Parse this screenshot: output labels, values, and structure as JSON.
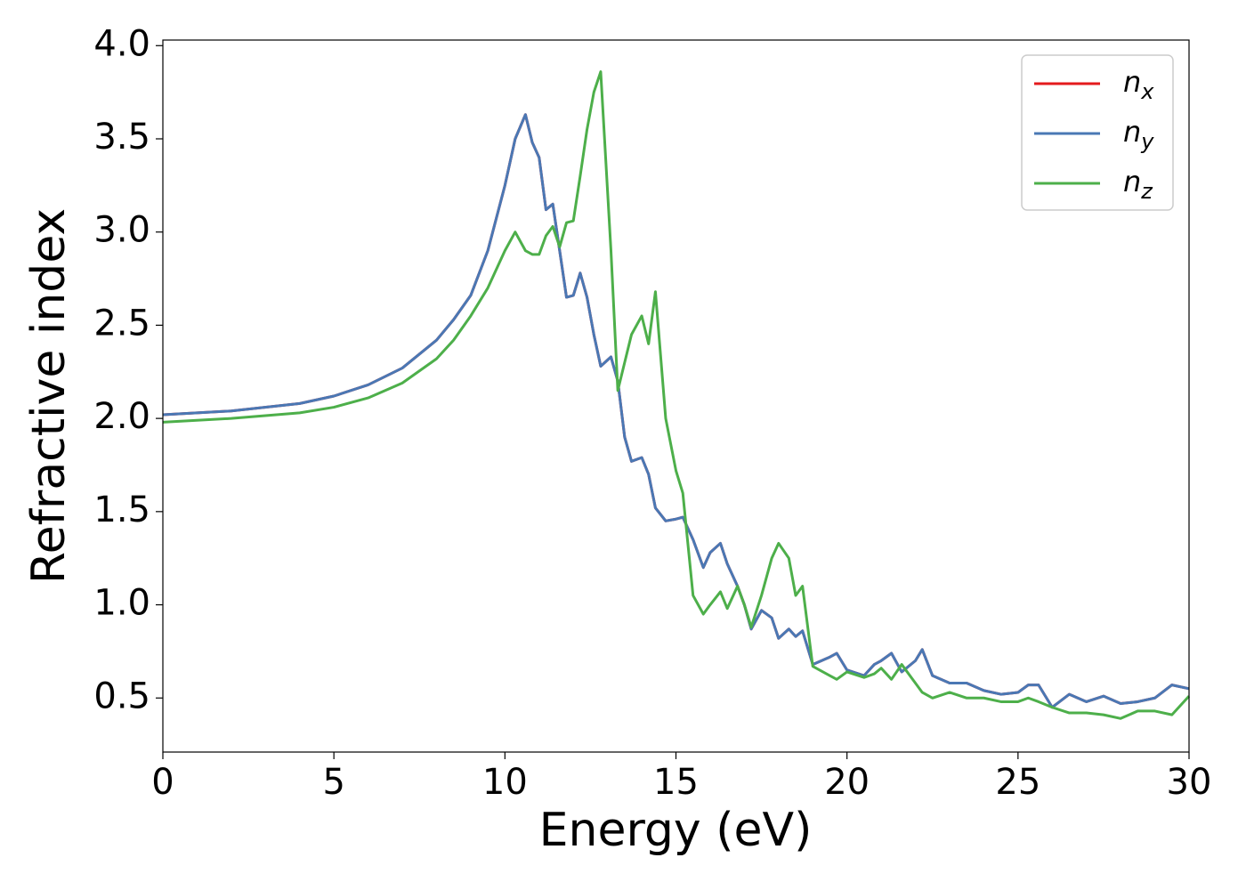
{
  "chart_data": {
    "type": "line",
    "xlabel": "Energy (eV)",
    "ylabel": "Refractive index",
    "x": [
      0,
      2,
      4,
      5,
      6,
      7,
      8,
      8.5,
      9,
      9.5,
      10,
      10.3,
      10.6,
      10.8,
      11,
      11.2,
      11.4,
      11.6,
      11.8,
      12,
      12.2,
      12.4,
      12.6,
      12.8,
      13.1,
      13.3,
      13.5,
      13.7,
      14,
      14.2,
      14.4,
      14.7,
      15,
      15.2,
      15.5,
      15.8,
      16,
      16.3,
      16.5,
      16.8,
      17,
      17.2,
      17.5,
      17.8,
      18,
      18.3,
      18.5,
      18.7,
      19,
      19.5,
      19.7,
      20,
      20.5,
      20.8,
      21,
      21.3,
      21.6,
      22,
      22.2,
      22.5,
      23,
      23.5,
      24,
      24.5,
      25,
      25.3,
      25.6,
      26,
      26.5,
      27,
      27.5,
      28,
      28.5,
      29,
      29.5,
      30
    ],
    "series": [
      {
        "name": "nx",
        "color": "#e41a1c",
        "values": [
          2.02,
          2.04,
          2.08,
          2.12,
          2.18,
          2.27,
          2.42,
          2.53,
          2.66,
          2.9,
          3.25,
          3.5,
          3.63,
          3.48,
          3.4,
          3.12,
          3.15,
          2.9,
          2.65,
          2.66,
          2.78,
          2.65,
          2.45,
          2.28,
          2.33,
          2.2,
          1.9,
          1.77,
          1.79,
          1.7,
          1.52,
          1.45,
          1.46,
          1.47,
          1.35,
          1.2,
          1.28,
          1.33,
          1.22,
          1.1,
          1.0,
          0.87,
          0.97,
          0.93,
          0.82,
          0.87,
          0.83,
          0.86,
          0.68,
          0.72,
          0.74,
          0.65,
          0.62,
          0.68,
          0.7,
          0.74,
          0.64,
          0.7,
          0.76,
          0.62,
          0.58,
          0.58,
          0.54,
          0.52,
          0.53,
          0.57,
          0.57,
          0.45,
          0.52,
          0.48,
          0.51,
          0.47,
          0.48,
          0.5,
          0.57,
          0.55
        ]
      },
      {
        "name": "ny",
        "color": "#4a78b4",
        "values": [
          2.02,
          2.04,
          2.08,
          2.12,
          2.18,
          2.27,
          2.42,
          2.53,
          2.66,
          2.9,
          3.25,
          3.5,
          3.63,
          3.48,
          3.4,
          3.12,
          3.15,
          2.9,
          2.65,
          2.66,
          2.78,
          2.65,
          2.45,
          2.28,
          2.33,
          2.2,
          1.9,
          1.77,
          1.79,
          1.7,
          1.52,
          1.45,
          1.46,
          1.47,
          1.35,
          1.2,
          1.28,
          1.33,
          1.22,
          1.1,
          1.0,
          0.87,
          0.97,
          0.93,
          0.82,
          0.87,
          0.83,
          0.86,
          0.68,
          0.72,
          0.74,
          0.65,
          0.62,
          0.68,
          0.7,
          0.74,
          0.64,
          0.7,
          0.76,
          0.62,
          0.58,
          0.58,
          0.54,
          0.52,
          0.53,
          0.57,
          0.57,
          0.45,
          0.52,
          0.48,
          0.51,
          0.47,
          0.48,
          0.5,
          0.57,
          0.55
        ]
      },
      {
        "name": "nz",
        "color": "#4daf4a",
        "values": [
          1.98,
          2.0,
          2.03,
          2.06,
          2.11,
          2.19,
          2.32,
          2.42,
          2.55,
          2.7,
          2.9,
          3.0,
          2.9,
          2.88,
          2.88,
          2.98,
          3.03,
          2.92,
          3.05,
          3.06,
          3.3,
          3.55,
          3.75,
          3.86,
          2.9,
          2.15,
          2.3,
          2.45,
          2.55,
          2.4,
          2.68,
          2.0,
          1.72,
          1.6,
          1.05,
          0.95,
          1.0,
          1.07,
          0.98,
          1.1,
          1.0,
          0.88,
          1.05,
          1.25,
          1.33,
          1.25,
          1.05,
          1.1,
          0.67,
          0.62,
          0.6,
          0.64,
          0.61,
          0.63,
          0.66,
          0.6,
          0.68,
          0.58,
          0.53,
          0.5,
          0.53,
          0.5,
          0.5,
          0.48,
          0.48,
          0.5,
          0.48,
          0.45,
          0.42,
          0.42,
          0.41,
          0.39,
          0.43,
          0.43,
          0.41,
          0.51
        ]
      }
    ],
    "xlim": [
      0,
      30
    ],
    "xticks": [
      0,
      5,
      10,
      15,
      20,
      25,
      30
    ],
    "ylim": [
      0.21,
      4.03
    ],
    "yticks": [
      0.5,
      {
        "value": 1.0,
        "label": "1.0"
      },
      1.5,
      {
        "value": 2.0,
        "label": "2.0"
      },
      2.5,
      {
        "value": 3.0,
        "label": "3.0"
      },
      3.5,
      {
        "value": 4.0,
        "label": "4.0"
      }
    ],
    "grid": false,
    "legend": "upper right"
  }
}
